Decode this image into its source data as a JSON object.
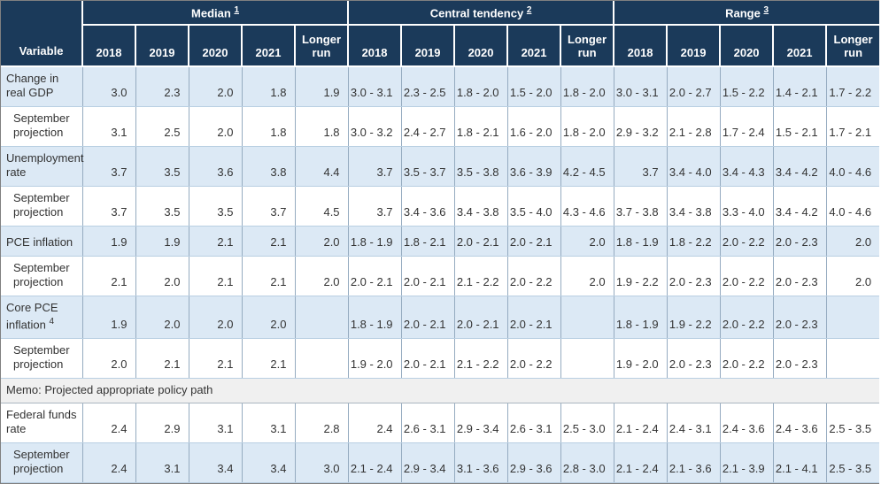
{
  "table": {
    "variable_header": "Variable",
    "groups": [
      {
        "label": "Median",
        "footnote": "1"
      },
      {
        "label": "Central tendency",
        "footnote": "2"
      },
      {
        "label": "Range",
        "footnote": "3"
      }
    ],
    "year_columns": [
      "2018",
      "2019",
      "2020",
      "2021",
      "Longer run"
    ],
    "memo_label": "Memo: Projected appropriate policy path",
    "rows": [
      {
        "variable": "Change in real GDP",
        "footnote": "",
        "indent": false,
        "shade": true,
        "median": [
          "3.0",
          "2.3",
          "2.0",
          "1.8",
          "1.9"
        ],
        "central": [
          "3.0 - 3.1",
          "2.3 - 2.5",
          "1.8 - 2.0",
          "1.5 - 2.0",
          "1.8 - 2.0"
        ],
        "range": [
          "3.0 - 3.1",
          "2.0 - 2.7",
          "1.5 - 2.2",
          "1.4 - 2.1",
          "1.7 - 2.2"
        ]
      },
      {
        "variable": "September projection",
        "footnote": "",
        "indent": true,
        "shade": false,
        "median": [
          "3.1",
          "2.5",
          "2.0",
          "1.8",
          "1.8"
        ],
        "central": [
          "3.0 - 3.2",
          "2.4 - 2.7",
          "1.8 - 2.1",
          "1.6 - 2.0",
          "1.8 - 2.0"
        ],
        "range": [
          "2.9 - 3.2",
          "2.1 - 2.8",
          "1.7 - 2.4",
          "1.5 - 2.1",
          "1.7 - 2.1"
        ]
      },
      {
        "variable": "Unemployment rate",
        "footnote": "",
        "indent": false,
        "shade": true,
        "median": [
          "3.7",
          "3.5",
          "3.6",
          "3.8",
          "4.4"
        ],
        "central": [
          "3.7",
          "3.5 - 3.7",
          "3.5 - 3.8",
          "3.6 - 3.9",
          "4.2 - 4.5"
        ],
        "range": [
          "3.7",
          "3.4 - 4.0",
          "3.4 - 4.3",
          "3.4 - 4.2",
          "4.0 - 4.6"
        ]
      },
      {
        "variable": "September projection",
        "footnote": "",
        "indent": true,
        "shade": false,
        "median": [
          "3.7",
          "3.5",
          "3.5",
          "3.7",
          "4.5"
        ],
        "central": [
          "3.7",
          "3.4 - 3.6",
          "3.4 - 3.8",
          "3.5 - 4.0",
          "4.3 - 4.6"
        ],
        "range": [
          "3.7 - 3.8",
          "3.4 - 3.8",
          "3.3 - 4.0",
          "3.4 - 4.2",
          "4.0 - 4.6"
        ]
      },
      {
        "variable": "PCE inflation",
        "footnote": "",
        "indent": false,
        "shade": true,
        "median": [
          "1.9",
          "1.9",
          "2.1",
          "2.1",
          "2.0"
        ],
        "central": [
          "1.8 - 1.9",
          "1.8 - 2.1",
          "2.0 - 2.1",
          "2.0 - 2.1",
          "2.0"
        ],
        "range": [
          "1.8 - 1.9",
          "1.8 - 2.2",
          "2.0 - 2.2",
          "2.0 - 2.3",
          "2.0"
        ]
      },
      {
        "variable": "September projection",
        "footnote": "",
        "indent": true,
        "shade": false,
        "median": [
          "2.1",
          "2.0",
          "2.1",
          "2.1",
          "2.0"
        ],
        "central": [
          "2.0 - 2.1",
          "2.0 - 2.1",
          "2.1 - 2.2",
          "2.0 - 2.2",
          "2.0"
        ],
        "range": [
          "1.9 - 2.2",
          "2.0 - 2.3",
          "2.0 - 2.2",
          "2.0 - 2.3",
          "2.0"
        ]
      },
      {
        "variable": "Core PCE inflation",
        "footnote": "4",
        "indent": false,
        "shade": true,
        "median": [
          "1.9",
          "2.0",
          "2.0",
          "2.0",
          ""
        ],
        "central": [
          "1.8 - 1.9",
          "2.0 - 2.1",
          "2.0 - 2.1",
          "2.0 - 2.1",
          ""
        ],
        "range": [
          "1.8 - 1.9",
          "1.9 - 2.2",
          "2.0 - 2.2",
          "2.0 - 2.3",
          ""
        ]
      },
      {
        "variable": "September projection",
        "footnote": "",
        "indent": true,
        "shade": false,
        "median": [
          "2.0",
          "2.1",
          "2.1",
          "2.1",
          ""
        ],
        "central": [
          "1.9 - 2.0",
          "2.0 - 2.1",
          "2.1 - 2.2",
          "2.0 - 2.2",
          ""
        ],
        "range": [
          "1.9 - 2.0",
          "2.0 - 2.3",
          "2.0 - 2.2",
          "2.0 - 2.3",
          ""
        ]
      },
      {
        "type": "memo"
      },
      {
        "variable": "Federal funds rate",
        "footnote": "",
        "indent": false,
        "shade": false,
        "median": [
          "2.4",
          "2.9",
          "3.1",
          "3.1",
          "2.8"
        ],
        "central": [
          "2.4",
          "2.6 - 3.1",
          "2.9 - 3.4",
          "2.6 - 3.1",
          "2.5 - 3.0"
        ],
        "range": [
          "2.1 - 2.4",
          "2.4 - 3.1",
          "2.4 - 3.6",
          "2.4 - 3.6",
          "2.5 - 3.5"
        ]
      },
      {
        "variable": "September projection",
        "footnote": "",
        "indent": true,
        "shade": true,
        "median": [
          "2.4",
          "3.1",
          "3.4",
          "3.4",
          "3.0"
        ],
        "central": [
          "2.1 - 2.4",
          "2.9 - 3.4",
          "3.1 - 3.6",
          "2.9 - 3.6",
          "2.8 - 3.0"
        ],
        "range": [
          "2.1 - 2.4",
          "2.1 - 3.6",
          "2.1 - 3.9",
          "2.1 - 4.1",
          "2.5 - 3.5"
        ]
      }
    ],
    "colors": {
      "header_bg": "#1b3a5a",
      "row_shade": "#dce9f5",
      "memo_bg": "#f0f0f0",
      "vertical_border": "#95abc0",
      "horizontal_border": "#b9cfe2",
      "text": "#333333"
    }
  }
}
